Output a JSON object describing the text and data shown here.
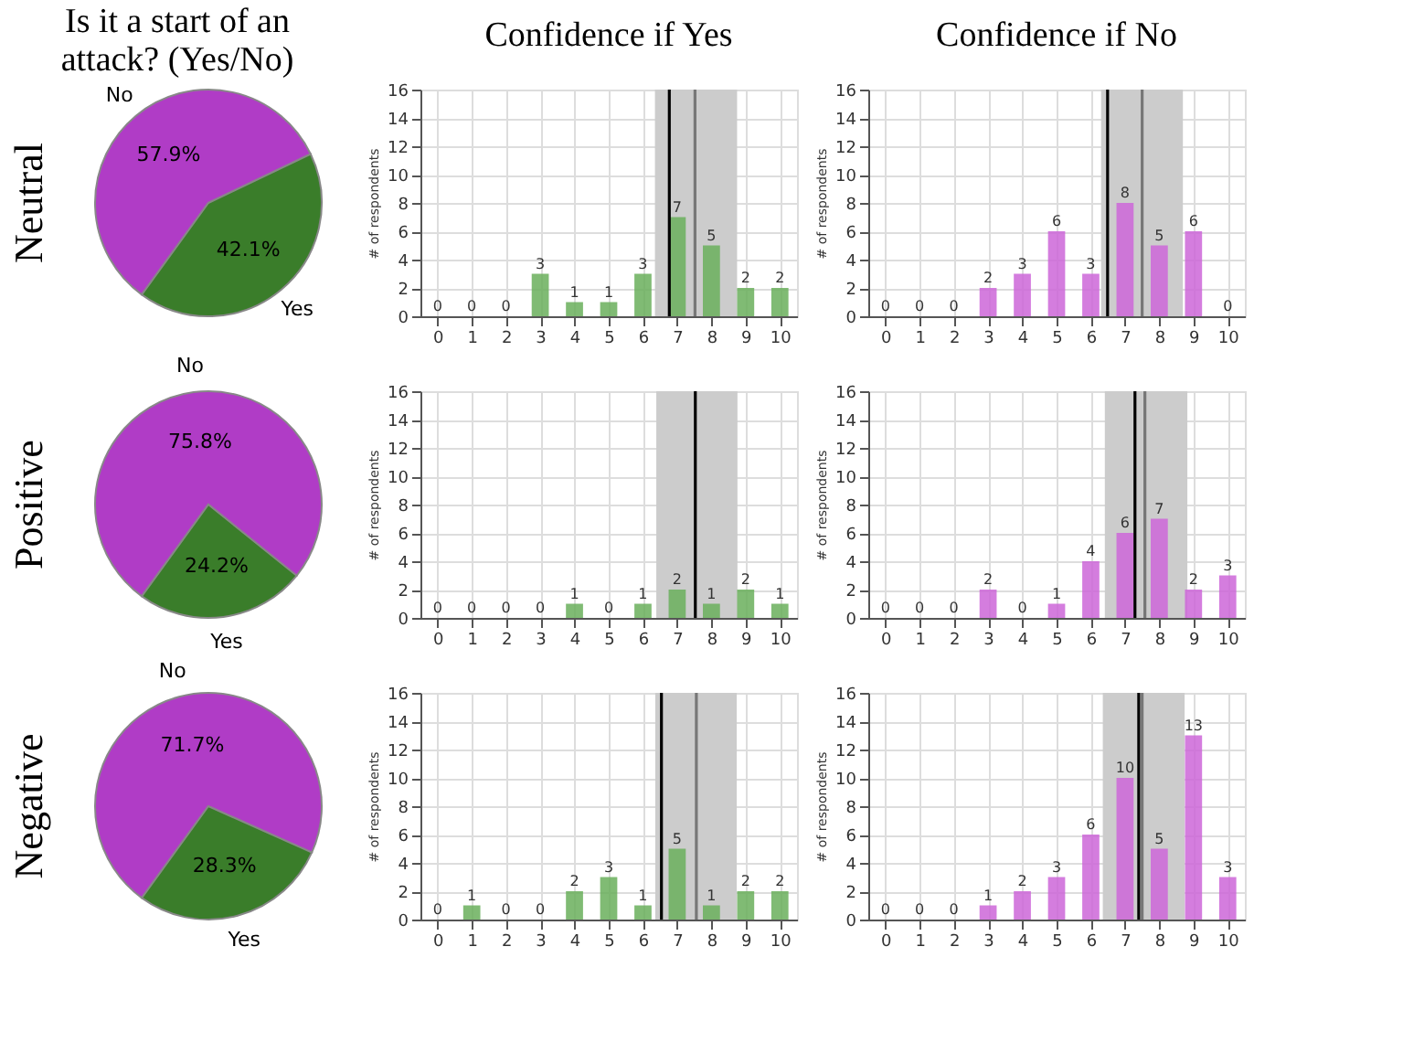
{
  "chart_data": [
    {
      "type": "pie",
      "title": "Is it a start of an attack? (Yes/No)",
      "ylabel": "Neutral",
      "categories": [
        "No",
        "Yes"
      ],
      "values": [
        57.9,
        42.1
      ],
      "value_labels": [
        "57.9%",
        "42.1%"
      ],
      "colors": [
        "#b03cc6",
        "#3a7d2a"
      ]
    },
    {
      "type": "bar",
      "title": "Confidence if Yes",
      "ylabel": "# of respondents",
      "x": [
        0,
        1,
        2,
        3,
        4,
        5,
        6,
        7,
        8,
        9,
        10
      ],
      "values": [
        0,
        0,
        0,
        3,
        1,
        1,
        3,
        7,
        5,
        2,
        2
      ],
      "color": "#6aaf5c",
      "xlim": [
        -0.5,
        10.5
      ],
      "xticks": [
        0,
        1,
        2,
        3,
        4,
        5,
        6,
        7,
        8,
        9,
        10
      ],
      "ylim": [
        0,
        16
      ],
      "yticks": [
        0,
        2,
        4,
        6,
        8,
        10,
        12,
        14,
        16
      ],
      "grid": true,
      "data_labels": true,
      "bands": [
        {
          "axis": "x",
          "from": 6.35,
          "to": 8.75,
          "color": "#cccccc"
        }
      ],
      "ref_lines": [
        {
          "axis": "x",
          "value": 6.77,
          "color": "#000000"
        },
        {
          "axis": "x",
          "value": 7.52,
          "color": "#777777"
        }
      ]
    },
    {
      "type": "bar",
      "title": "Confidence if No",
      "ylabel": "# of respondents",
      "x": [
        0,
        1,
        2,
        3,
        4,
        5,
        6,
        7,
        8,
        9,
        10
      ],
      "values": [
        0,
        0,
        0,
        2,
        3,
        6,
        3,
        8,
        5,
        6,
        0
      ],
      "color": "#cc66d8",
      "xlim": [
        -0.5,
        10.5
      ],
      "xticks": [
        0,
        1,
        2,
        3,
        4,
        5,
        6,
        7,
        8,
        9,
        10
      ],
      "ylim": [
        0,
        16
      ],
      "yticks": [
        0,
        2,
        4,
        6,
        8,
        10,
        12,
        14,
        16
      ],
      "grid": true,
      "data_labels": true,
      "bands": [
        {
          "axis": "x",
          "from": 6.3,
          "to": 8.69,
          "color": "#cccccc"
        }
      ],
      "ref_lines": [
        {
          "axis": "x",
          "value": 6.49,
          "color": "#000000"
        },
        {
          "axis": "x",
          "value": 7.5,
          "color": "#777777"
        }
      ]
    },
    {
      "type": "pie",
      "ylabel": "Positive",
      "categories": [
        "No",
        "Yes"
      ],
      "values": [
        75.8,
        24.2
      ],
      "value_labels": [
        "75.8%",
        "24.2%"
      ],
      "colors": [
        "#b03cc6",
        "#3a7d2a"
      ]
    },
    {
      "type": "bar",
      "ylabel": "# of respondents",
      "x": [
        0,
        1,
        2,
        3,
        4,
        5,
        6,
        7,
        8,
        9,
        10
      ],
      "values": [
        0,
        0,
        0,
        0,
        1,
        0,
        1,
        2,
        1,
        2,
        1
      ],
      "color": "#6aaf5c",
      "xlim": [
        -0.5,
        10.5
      ],
      "xticks": [
        0,
        1,
        2,
        3,
        4,
        5,
        6,
        7,
        8,
        9,
        10
      ],
      "ylim": [
        0,
        16
      ],
      "yticks": [
        0,
        2,
        4,
        6,
        8,
        10,
        12,
        14,
        16
      ],
      "grid": true,
      "data_labels": true,
      "bands": [
        {
          "axis": "x",
          "from": 6.39,
          "to": 8.76,
          "color": "#cccccc"
        }
      ],
      "ref_lines": [
        {
          "axis": "x",
          "value": 7.53,
          "color": "#000000"
        }
      ]
    },
    {
      "type": "bar",
      "ylabel": "# of respondents",
      "x": [
        0,
        1,
        2,
        3,
        4,
        5,
        6,
        7,
        8,
        9,
        10
      ],
      "values": [
        0,
        0,
        0,
        2,
        0,
        1,
        4,
        6,
        7,
        2,
        3
      ],
      "color": "#cc66d8",
      "xlim": [
        -0.5,
        10.5
      ],
      "xticks": [
        0,
        1,
        2,
        3,
        4,
        5,
        6,
        7,
        8,
        9,
        10
      ],
      "ylim": [
        0,
        16
      ],
      "yticks": [
        0,
        2,
        4,
        6,
        8,
        10,
        12,
        14,
        16
      ],
      "grid": true,
      "data_labels": true,
      "bands": [
        {
          "axis": "x",
          "from": 6.41,
          "to": 8.82,
          "color": "#cccccc"
        }
      ],
      "ref_lines": [
        {
          "axis": "x",
          "value": 7.29,
          "color": "#000000"
        },
        {
          "axis": "x",
          "value": 7.58,
          "color": "#777777"
        }
      ]
    },
    {
      "type": "pie",
      "ylabel": "Negative",
      "categories": [
        "No",
        "Yes"
      ],
      "values": [
        71.7,
        28.3
      ],
      "value_labels": [
        "71.7%",
        "28.3%"
      ],
      "colors": [
        "#b03cc6",
        "#3a7d2a"
      ]
    },
    {
      "type": "bar",
      "ylabel": "# of respondents",
      "x": [
        0,
        1,
        2,
        3,
        4,
        5,
        6,
        7,
        8,
        9,
        10
      ],
      "values": [
        0,
        1,
        0,
        0,
        2,
        3,
        1,
        5,
        1,
        2,
        2
      ],
      "color": "#6aaf5c",
      "xlim": [
        -0.5,
        10.5
      ],
      "xticks": [
        0,
        1,
        2,
        3,
        4,
        5,
        6,
        7,
        8,
        9,
        10
      ],
      "ylim": [
        0,
        16
      ],
      "yticks": [
        0,
        2,
        4,
        6,
        8,
        10,
        12,
        14,
        16
      ],
      "grid": true,
      "data_labels": true,
      "bands": [
        {
          "axis": "x",
          "from": 6.36,
          "to": 8.74,
          "color": "#cccccc"
        }
      ],
      "ref_lines": [
        {
          "axis": "x",
          "value": 6.54,
          "color": "#000000"
        },
        {
          "axis": "x",
          "value": 7.56,
          "color": "#777777"
        }
      ]
    },
    {
      "type": "bar",
      "ylabel": "# of respondents",
      "x": [
        0,
        1,
        2,
        3,
        4,
        5,
        6,
        7,
        8,
        9,
        10
      ],
      "values": [
        0,
        0,
        0,
        1,
        2,
        3,
        6,
        10,
        5,
        13,
        3
      ],
      "color": "#cc66d8",
      "xlim": [
        -0.5,
        10.5
      ],
      "xticks": [
        0,
        1,
        2,
        3,
        4,
        5,
        6,
        7,
        8,
        9,
        10
      ],
      "ylim": [
        0,
        16
      ],
      "yticks": [
        0,
        2,
        4,
        6,
        8,
        10,
        12,
        14,
        16
      ],
      "grid": true,
      "data_labels": true,
      "bands": [
        {
          "axis": "x",
          "from": 6.35,
          "to": 8.74,
          "color": "#cccccc"
        }
      ],
      "ref_lines": [
        {
          "axis": "x",
          "value": 7.4,
          "color": "#000000"
        },
        {
          "axis": "x",
          "value": 7.5,
          "color": "#777777"
        }
      ]
    }
  ]
}
